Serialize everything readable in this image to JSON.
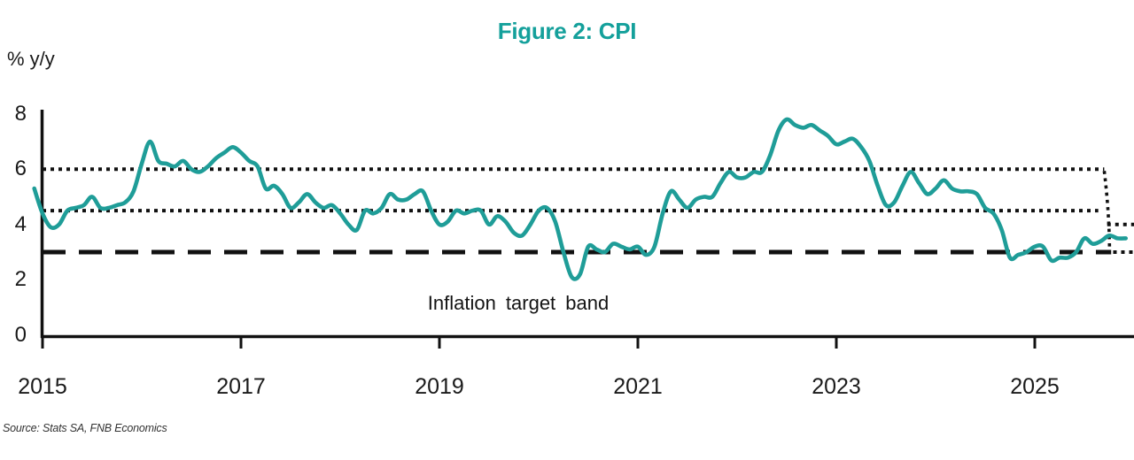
{
  "title": "Figure 2: CPI",
  "unit_label": "% y/y",
  "annotation": "Inflation target band",
  "source": "Source: Stats SA, FNB Economics",
  "colors": {
    "title": "#14A09B",
    "line": "#1F9D98",
    "reference": "#111111",
    "axis": "#111111"
  },
  "chart_data": {
    "type": "line",
    "title": "Figure 2: CPI",
    "ylabel": "% y/y",
    "ylim": [
      0,
      8
    ],
    "yticks": [
      8,
      6,
      4,
      2,
      0
    ],
    "xticks": [
      2015,
      2017,
      2019,
      2021,
      2023,
      2025
    ],
    "grid": false,
    "legend": "none",
    "x_start": "2014-12",
    "frequency": "monthly",
    "series": [
      {
        "name": "CPI y/y %",
        "values": [
          5.3,
          4.4,
          3.9,
          4.0,
          4.5,
          4.6,
          4.7,
          5.0,
          4.6,
          4.6,
          4.7,
          4.8,
          5.2,
          6.2,
          7.0,
          6.3,
          6.2,
          6.1,
          6.3,
          6.0,
          5.9,
          6.1,
          6.4,
          6.6,
          6.8,
          6.6,
          6.3,
          6.1,
          5.3,
          5.4,
          5.1,
          4.6,
          4.8,
          5.1,
          4.8,
          4.6,
          4.7,
          4.4,
          4.0,
          3.8,
          4.5,
          4.4,
          4.6,
          5.1,
          4.9,
          4.9,
          5.1,
          5.2,
          4.5,
          4.0,
          4.1,
          4.5,
          4.4,
          4.5,
          4.5,
          4.0,
          4.3,
          4.1,
          3.7,
          3.6,
          4.0,
          4.5,
          4.6,
          4.1,
          3.0,
          2.1,
          2.2,
          3.2,
          3.1,
          3.0,
          3.3,
          3.2,
          3.1,
          3.2,
          2.9,
          3.2,
          4.4,
          5.2,
          4.9,
          4.6,
          4.9,
          5.0,
          5.0,
          5.5,
          5.9,
          5.7,
          5.7,
          5.9,
          5.9,
          6.5,
          7.4,
          7.8,
          7.6,
          7.5,
          7.6,
          7.4,
          7.2,
          6.9,
          7.0,
          7.1,
          6.8,
          6.3,
          5.4,
          4.7,
          4.8,
          5.4,
          5.9,
          5.5,
          5.1,
          5.3,
          5.6,
          5.3,
          5.2,
          5.2,
          5.1,
          4.6,
          4.4,
          3.8,
          2.8,
          2.9,
          3.0,
          3.2,
          3.2,
          2.7,
          2.8,
          2.8,
          3.0,
          3.5,
          3.3,
          3.4,
          3.6,
          3.5,
          3.5
        ]
      }
    ],
    "reference_lines": [
      {
        "label": "target band upper bound 6%",
        "value": 6,
        "style": "dotted",
        "from": 2015,
        "to": 2025.7
      },
      {
        "label": "target band midpoint 4.5%",
        "value": 4.5,
        "style": "dotted",
        "from": 2015,
        "to": 2025.64
      },
      {
        "label": "lowered upper bound 4%",
        "value": 4,
        "style": "dotted",
        "from": 2025.73,
        "to": 2026.03
      },
      {
        "label": "target band lower bound 3%",
        "value": 3,
        "style": "dashed",
        "from": 2015,
        "to": 2025.77
      },
      {
        "label": "3% projection",
        "value": 3,
        "style": "dotted",
        "from": 2025.79,
        "to": 2026.03
      }
    ],
    "reference_drop": {
      "label": "band step-down",
      "at": 2025.7,
      "from_value": 6,
      "to_value": 3,
      "style": "dotted"
    },
    "annotation": "Inflation target band"
  }
}
